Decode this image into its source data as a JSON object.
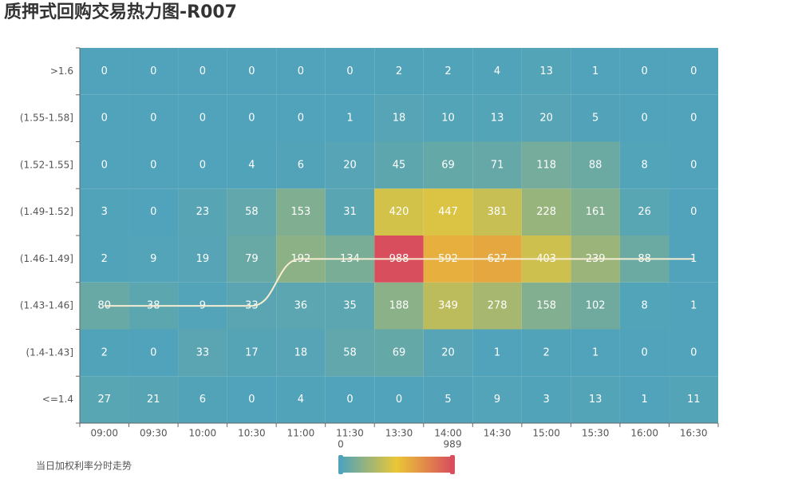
{
  "chart_data": {
    "type": "heatmap",
    "title": "质押式回购交易热力图-R007",
    "categories": [
      "09:00",
      "09:30",
      "10:00",
      "10:30",
      "11:00",
      "11:30",
      "13:30",
      "14:00",
      "14:30",
      "15:00",
      "15:30",
      "16:00",
      "16:30"
    ],
    "y_categories": [
      "<=1.4",
      "(1.4-1.43]",
      "(1.43-1.46]",
      "(1.46-1.49]",
      "(1.49-1.52]",
      "(1.52-1.55]",
      "(1.55-1.58]",
      ">1.6"
    ],
    "values": [
      [
        27,
        21,
        6,
        0,
        4,
        0,
        0,
        5,
        9,
        3,
        13,
        1,
        11
      ],
      [
        2,
        0,
        33,
        17,
        18,
        58,
        69,
        20,
        1,
        2,
        1,
        0,
        0
      ],
      [
        80,
        38,
        9,
        33,
        36,
        35,
        188,
        349,
        278,
        158,
        102,
        8,
        1
      ],
      [
        2,
        9,
        19,
        79,
        192,
        134,
        988,
        592,
        627,
        403,
        239,
        88,
        1
      ],
      [
        3,
        0,
        23,
        58,
        153,
        31,
        420,
        447,
        381,
        228,
        161,
        26,
        0
      ],
      [
        0,
        0,
        0,
        4,
        6,
        20,
        45,
        69,
        71,
        118,
        88,
        8,
        0
      ],
      [
        0,
        0,
        0,
        0,
        0,
        1,
        18,
        10,
        13,
        20,
        5,
        0,
        0
      ],
      [
        0,
        0,
        0,
        0,
        0,
        0,
        2,
        2,
        4,
        13,
        1,
        0,
        0
      ]
    ],
    "line": {
      "name": "当日加权利率分时走势",
      "color": "#f5ecd2",
      "values": [
        "(1.43-1.46]",
        "(1.43-1.46]",
        "(1.43-1.46]",
        "(1.43-1.46]",
        "(1.46-1.49]",
        "(1.46-1.49]",
        "(1.46-1.49]",
        "(1.46-1.49]",
        "(1.46-1.49]",
        "(1.46-1.49]",
        "(1.46-1.49]",
        "(1.46-1.49]",
        "(1.46-1.49]"
      ]
    },
    "visual_map": {
      "min": 0,
      "max": 989,
      "colors": [
        "#50a3ba",
        "#eac736",
        "#d94e5d"
      ]
    }
  }
}
